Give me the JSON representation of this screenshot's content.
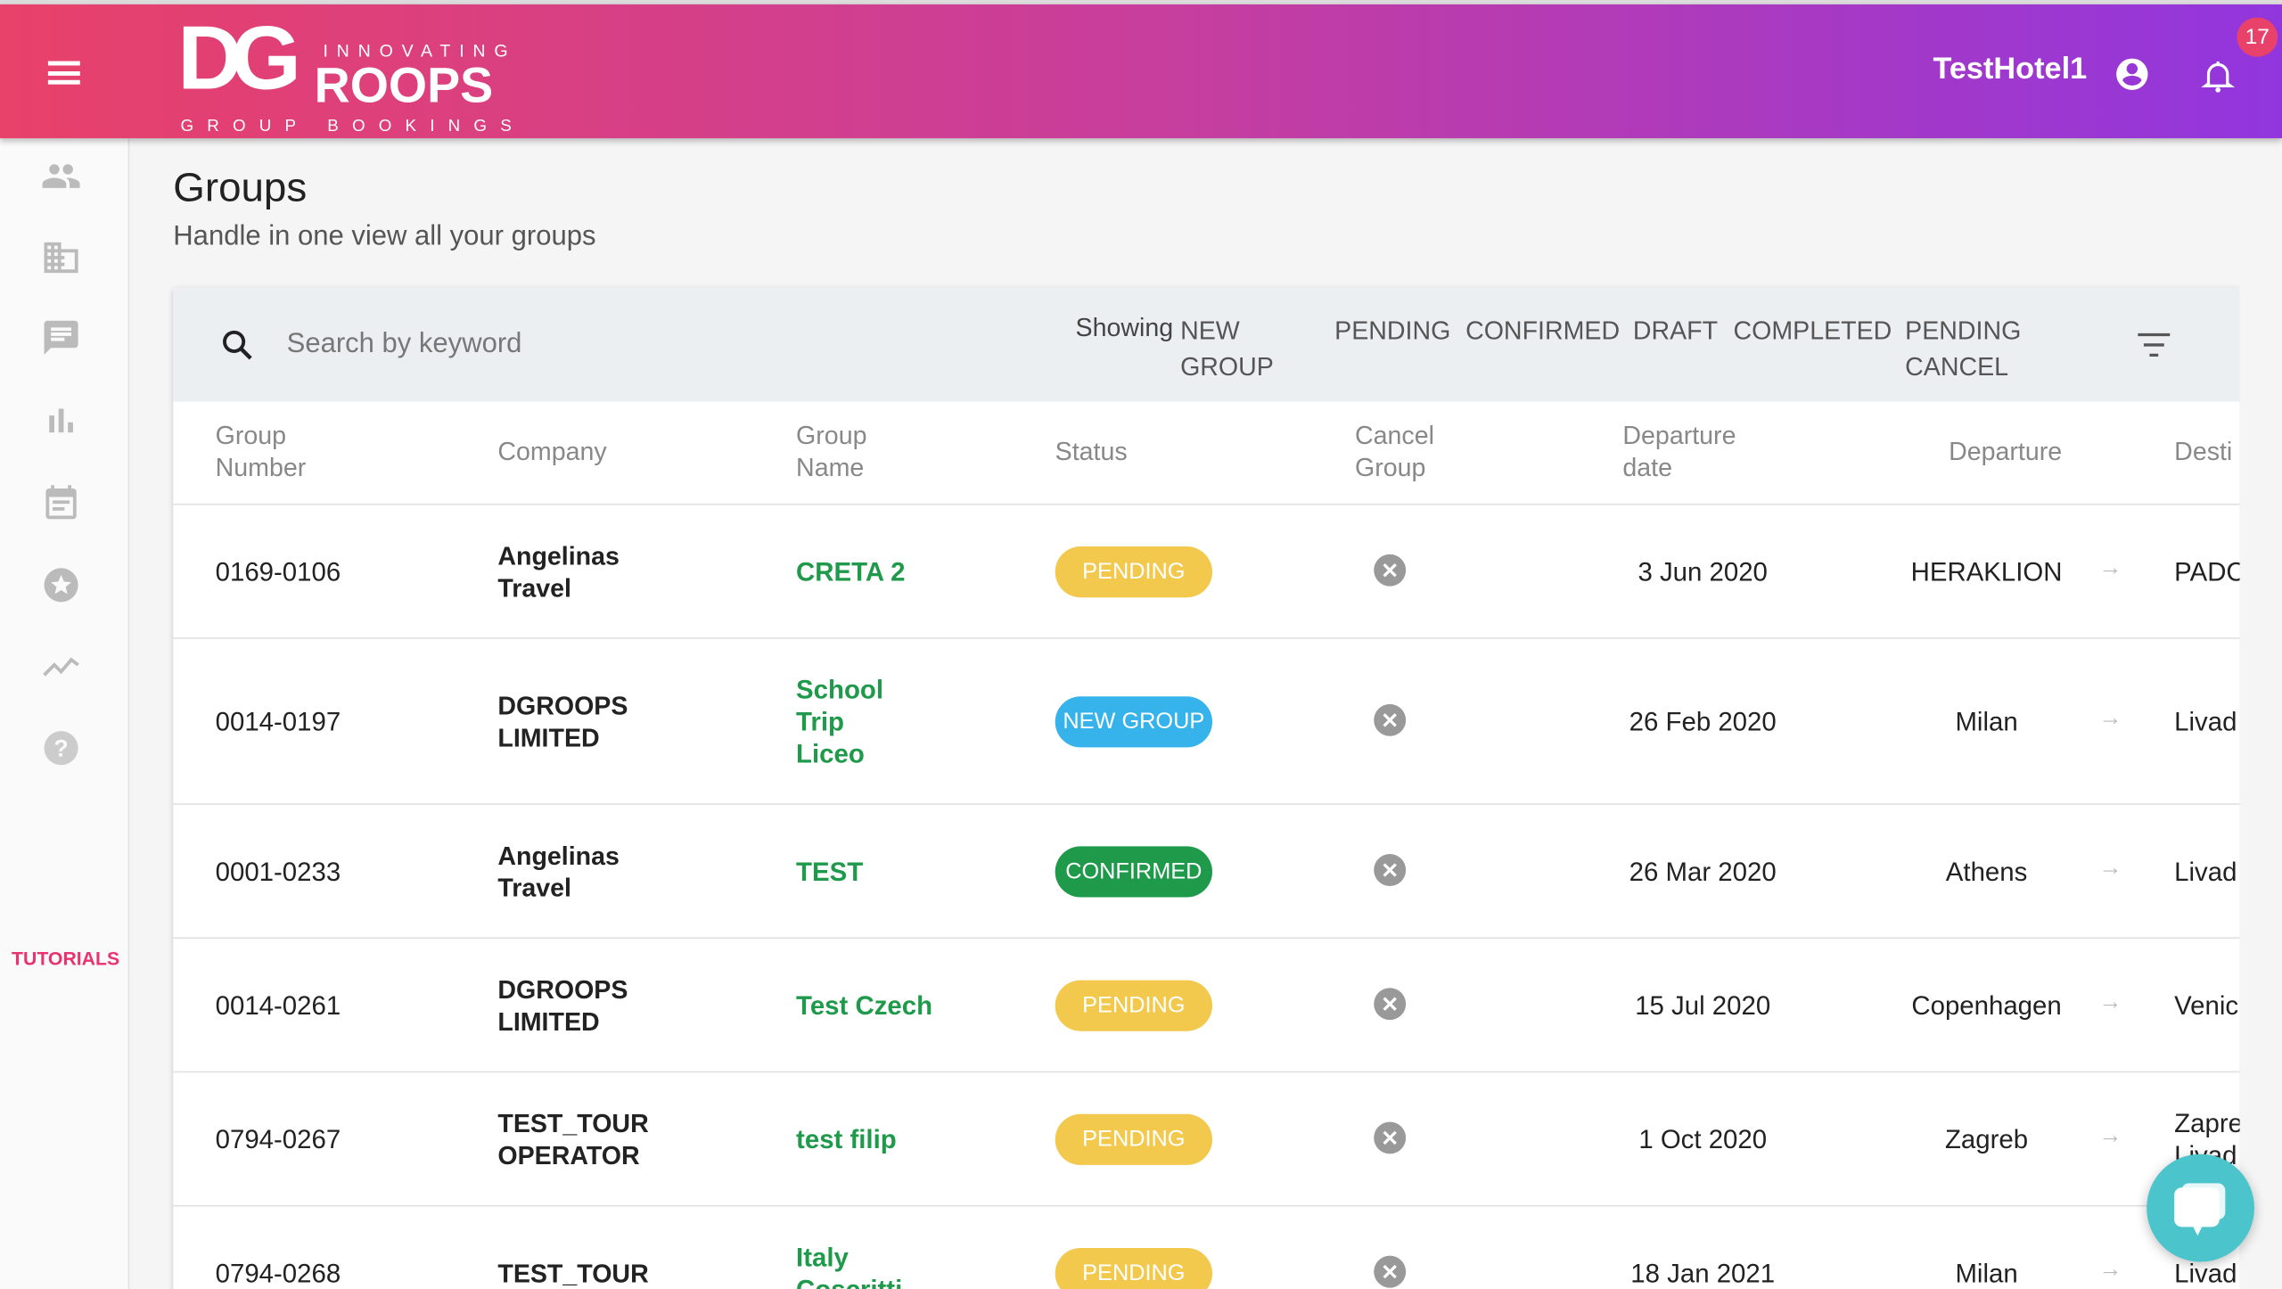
{
  "header": {
    "logo_text": "DGROOPS",
    "logo_tagline_top": "INNOVATING",
    "logo_tagline_bottom": "GROUP BOOKINGS",
    "user": "TestHotel1",
    "notifications": "17",
    "gradient": [
      "#e8416a",
      "#9136de"
    ]
  },
  "sidebar": {
    "items": [
      {
        "icon": "people-icon"
      },
      {
        "icon": "business-icon"
      },
      {
        "icon": "chat-icon"
      },
      {
        "icon": "bar-chart-icon"
      },
      {
        "icon": "calendar-icon"
      },
      {
        "icon": "star-icon"
      },
      {
        "icon": "trending-icon"
      },
      {
        "icon": "help-icon"
      }
    ],
    "tutorials": "TUTORIALS"
  },
  "page": {
    "title": "Groups",
    "subtitle": "Handle in one view all your groups"
  },
  "toolbar": {
    "search_placeholder": "Search by keyword",
    "showing": "Showing",
    "filters": [
      "NEW GROUP",
      "PENDING",
      "CONFIRMED",
      "DRAFT",
      "COMPLETED",
      "PENDING CANCEL"
    ]
  },
  "table": {
    "columns": [
      "Group Number",
      "Company",
      "Group Name",
      "Status",
      "Cancel Group",
      "Departure date",
      "Departure",
      "Desti"
    ],
    "rows": [
      {
        "number": "0169-0106",
        "company": "Angelinas Travel",
        "name": "CRETA 2",
        "status": "PENDING",
        "date": "3 Jun 2020",
        "departure": "HERAKLION",
        "destination": "PADC"
      },
      {
        "number": "0014-0197",
        "company": "DGROOPS LIMITED",
        "name": "School Trip Liceo",
        "status": "NEW GROUP",
        "date": "26 Feb 2020",
        "departure": "Milan",
        "destination": "Livad"
      },
      {
        "number": "0001-0233",
        "company": "Angelinas Travel",
        "name": "TEST",
        "status": "CONFIRMED",
        "date": "26 Mar 2020",
        "departure": "Athens",
        "destination": "Livad"
      },
      {
        "number": "0014-0261",
        "company": "DGROOPS LIMITED",
        "name": "Test Czech",
        "status": "PENDING",
        "date": "15 Jul 2020",
        "departure": "Copenhagen",
        "destination": "Venic"
      },
      {
        "number": "0794-0267",
        "company": "TEST_TOUR OPERATOR",
        "name": "test filip",
        "status": "PENDING",
        "date": "1 Oct 2020",
        "departure": "Zagreb",
        "destination": "Zapre Livad"
      },
      {
        "number": "0794-0268",
        "company": "TEST_TOUR",
        "name": "Italy Coscritti",
        "status": "PENDING",
        "date": "18 Jan 2021",
        "departure": "Milan",
        "destination": "Livad"
      }
    ]
  },
  "status_colors": {
    "PENDING": "#f2c94c",
    "NEW GROUP": "#36b3ea",
    "CONFIRMED": "#1e9a4a"
  }
}
